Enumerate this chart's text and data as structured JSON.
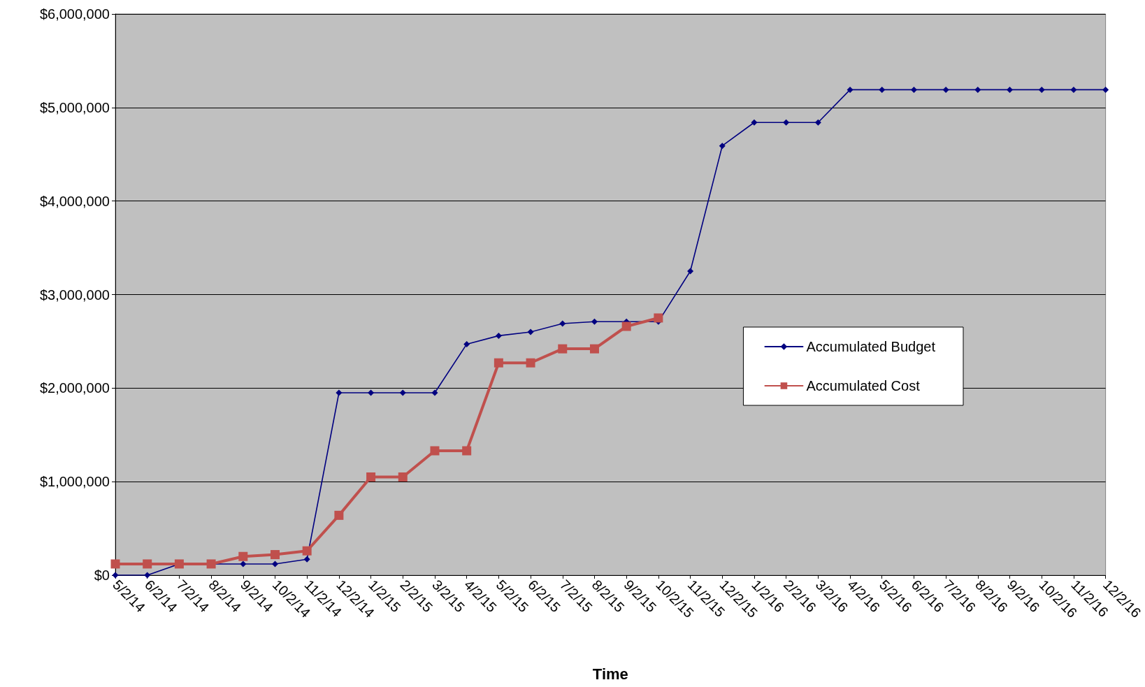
{
  "chart_data": {
    "type": "line",
    "xlabel": "Time",
    "categories": [
      "5/2/14",
      "6/2/14",
      "7/2/14",
      "8/2/14",
      "9/2/14",
      "10/2/14",
      "11/2/14",
      "12/2/14",
      "1/2/15",
      "2/2/15",
      "3/2/15",
      "4/2/15",
      "5/2/15",
      "6/2/15",
      "7/2/15",
      "8/2/15",
      "9/2/15",
      "10/2/15",
      "11/2/15",
      "12/2/15",
      "1/2/16",
      "2/2/16",
      "3/2/16",
      "4/2/16",
      "5/2/16",
      "6/2/16",
      "7/2/16",
      "8/2/16",
      "9/2/16",
      "10/2/16",
      "11/2/16",
      "12/2/16"
    ],
    "series": [
      {
        "name": "Accumulated Budget",
        "color": "#000080",
        "marker": "diamond",
        "values": [
          0,
          0,
          120000,
          120000,
          120000,
          120000,
          170000,
          1950000,
          1950000,
          1950000,
          1950000,
          2470000,
          2560000,
          2600000,
          2690000,
          2710000,
          2710000,
          2710000,
          3250000,
          4590000,
          4840000,
          4840000,
          4840000,
          5190000,
          5190000,
          5190000,
          5190000,
          5190000,
          5190000,
          5190000,
          5190000,
          5190000
        ]
      },
      {
        "name": "Accumulated Cost",
        "color": "#c0504d",
        "marker": "square",
        "values": [
          120000,
          120000,
          120000,
          120000,
          200000,
          220000,
          260000,
          640000,
          1050000,
          1050000,
          1330000,
          1330000,
          2270000,
          2270000,
          2420000,
          2420000,
          2660000,
          2750000,
          null,
          null,
          null,
          null,
          null,
          null,
          null,
          null,
          null,
          null,
          null,
          null,
          null,
          null
        ]
      }
    ],
    "ylim": [
      0,
      6000000
    ],
    "yticks": [
      {
        "value": 0,
        "label": "$0"
      },
      {
        "value": 1000000,
        "label": "$1,000,000"
      },
      {
        "value": 2000000,
        "label": "$2,000,000"
      },
      {
        "value": 3000000,
        "label": "$3,000,000"
      },
      {
        "value": 4000000,
        "label": "$4,000,000"
      },
      {
        "value": 5000000,
        "label": "$5,000,000"
      },
      {
        "value": 6000000,
        "label": "$6,000,000"
      }
    ],
    "grid": "y",
    "legend": "right"
  }
}
